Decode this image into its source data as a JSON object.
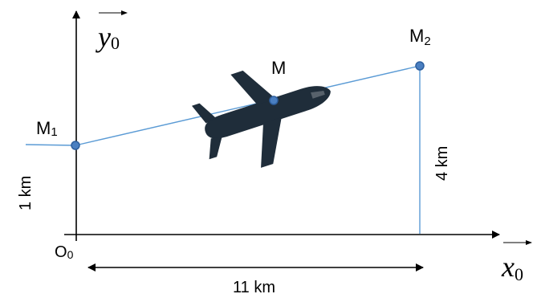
{
  "axes": {
    "y_name": "y",
    "y_sub": "0",
    "x_name": "x",
    "x_sub": "0",
    "origin_name": "O",
    "origin_sub": "0"
  },
  "points": {
    "m1_name": "M",
    "m1_sub": "1",
    "m_name": "M",
    "m2_name": "M",
    "m2_sub": "2"
  },
  "dimensions": {
    "height_left": "1 km",
    "height_right": "4 km",
    "horizontal": "11 km"
  },
  "colors": {
    "line": "#5b9bd5",
    "point_fill": "#4a7fc1",
    "point_stroke": "#2e5f9e",
    "plane": "#1f2d3a",
    "axis": "#000000"
  },
  "icons": {
    "plane": "airplane-icon"
  }
}
